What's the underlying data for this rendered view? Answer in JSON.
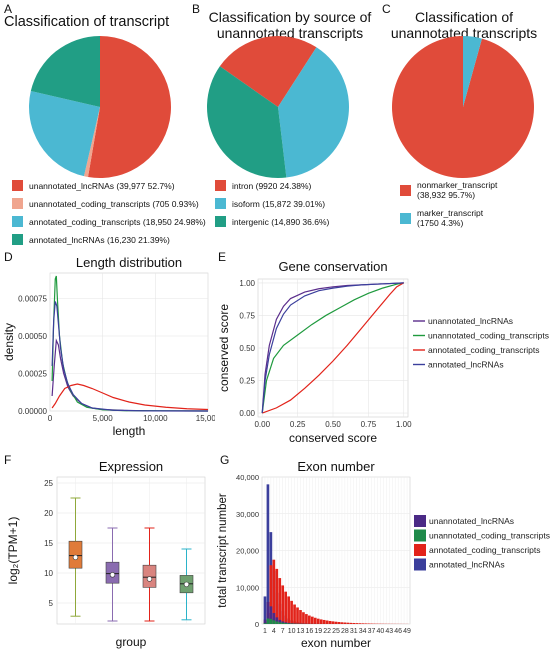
{
  "panels": {
    "A": {
      "label": "A",
      "title": "Classification of transcript"
    },
    "B": {
      "label": "B",
      "title_line1": "Classification by source of",
      "title_line2": "unannotated transcripts"
    },
    "C": {
      "label": "C",
      "title_line1": "Classification of",
      "title_line2": "unannotated transcripts"
    },
    "D": {
      "label": "D"
    },
    "E": {
      "label": "E"
    },
    "F": {
      "label": "F"
    },
    "G": {
      "label": "G"
    }
  },
  "chart_data": [
    {
      "id": "A",
      "type": "pie",
      "title": "Classification of transcript",
      "slices": [
        {
          "label": "unannotated_lncRNAs (39,977 52.7%)",
          "value": 52.7,
          "color": "#e04b3a"
        },
        {
          "label": "unannotated_coding_transcripts (705 0.93%)",
          "value": 0.93,
          "color": "#f0a58f"
        },
        {
          "label": "annotated_coding_transcripts (18,950 24.98%)",
          "value": 24.98,
          "color": "#4bb8d2"
        },
        {
          "label": "annotated_lncRNAs (16,230 21.39%)",
          "value": 21.39,
          "color": "#219e85"
        }
      ]
    },
    {
      "id": "B",
      "type": "pie",
      "title": "Classification by source of unannotated transcripts",
      "slices": [
        {
          "label": "intron (9920 24.38%)",
          "value": 24.38,
          "color": "#e04b3a"
        },
        {
          "label": "isoform (15,872 39.01%)",
          "value": 39.01,
          "color": "#4bb8d2"
        },
        {
          "label": "intergenic (14,890 36.6%)",
          "value": 36.6,
          "color": "#219e85"
        }
      ]
    },
    {
      "id": "C",
      "type": "pie",
      "title": "Classification of unannotated transcripts",
      "slices": [
        {
          "label": "nonmarker_transcript\n(38,932 95.7%)",
          "value": 95.7,
          "color": "#e04b3a"
        },
        {
          "label": "marker_transcript\n(1750 4.3%)",
          "value": 4.3,
          "color": "#4bb8d2"
        }
      ]
    },
    {
      "id": "D",
      "type": "line",
      "title": "Length distribution",
      "xlabel": "length",
      "ylabel": "density",
      "xlim": [
        0,
        15000
      ],
      "ylim": [
        0,
        0.00092
      ],
      "xticks": [
        0,
        5000,
        10000,
        15000
      ],
      "xtick_labels": [
        "0",
        "5,000",
        "10,000",
        "15,000"
      ],
      "yticks": [
        0,
        0.00025,
        0.0005,
        0.00075
      ],
      "ytick_labels": [
        "0.00000",
        "0.00025",
        "0.00050",
        "0.00075"
      ],
      "series": [
        {
          "color": "#5a2d8c",
          "x": [
            200,
            400,
            600,
            800,
            1000,
            1300,
            1700,
            2200,
            3000,
            4000,
            5000,
            7000,
            10000,
            15000
          ],
          "y": [
            0.0001,
            0.0003,
            0.00047,
            0.00044,
            0.00035,
            0.00025,
            0.00016,
            0.0001,
            5e-05,
            2e-05,
            1e-05,
            4e-06,
            1e-06,
            0
          ]
        },
        {
          "color": "#1f9a3e",
          "x": [
            200,
            350,
            500,
            600,
            700,
            900,
            1200,
            1600,
            2000,
            2600,
            3500,
            5000,
            7000,
            15000
          ],
          "y": [
            0.0002,
            0.0006,
            0.00088,
            0.0009,
            0.00075,
            0.0005,
            0.00032,
            0.0002,
            0.00013,
            6e-05,
            2.5e-05,
            8e-06,
            2e-06,
            0
          ]
        },
        {
          "color": "#e2231a",
          "x": [
            200,
            500,
            900,
            1400,
            2000,
            2600,
            3200,
            4000,
            5000,
            6000,
            7500,
            9000,
            11000,
            13000,
            15000
          ],
          "y": [
            2e-05,
            5e-05,
            0.0001,
            0.00015,
            0.00017,
            0.00018,
            0.00017,
            0.00015,
            0.00012,
            9e-05,
            6e-05,
            4e-05,
            2.5e-05,
            1.5e-05,
            1e-05
          ]
        },
        {
          "color": "#3b3f9c",
          "x": [
            200,
            350,
            500,
            650,
            800,
            1000,
            1300,
            1700,
            2200,
            3000,
            4000,
            6000,
            9000,
            15000
          ],
          "y": [
            0.0003,
            0.0006,
            0.00073,
            0.0007,
            0.00058,
            0.00042,
            0.00028,
            0.00018,
            0.00011,
            5e-05,
            2e-05,
            5e-06,
            1e-06,
            0
          ]
        }
      ]
    },
    {
      "id": "E",
      "type": "line",
      "title": "Gene conservation",
      "xlabel": "conserved score",
      "ylabel": "conserved score",
      "xlim": [
        -0.03,
        1.03
      ],
      "ylim": [
        -0.03,
        1.03
      ],
      "xticks": [
        0,
        0.25,
        0.5,
        0.75,
        1
      ],
      "xtick_labels": [
        "0.00",
        "0.25",
        "0.50",
        "0.75",
        "1.00"
      ],
      "yticks": [
        0,
        0.25,
        0.5,
        0.75,
        1
      ],
      "ytick_labels": [
        "0.00",
        "0.25",
        "0.50",
        "0.75",
        "1.00"
      ],
      "series": [
        {
          "name": "unannotated_lncRNAs",
          "color": "#5a2d8c",
          "x": [
            0,
            0.02,
            0.05,
            0.1,
            0.15,
            0.2,
            0.3,
            0.4,
            0.5,
            0.6,
            0.7,
            0.8,
            0.9,
            1
          ],
          "y": [
            0,
            0.3,
            0.52,
            0.72,
            0.82,
            0.88,
            0.93,
            0.955,
            0.97,
            0.98,
            0.985,
            0.99,
            0.995,
            1
          ]
        },
        {
          "name": "unannotated_coding_transcripts",
          "color": "#1f9a3e",
          "x": [
            0,
            0.03,
            0.08,
            0.15,
            0.25,
            0.35,
            0.45,
            0.55,
            0.65,
            0.75,
            0.85,
            0.95,
            1
          ],
          "y": [
            0,
            0.25,
            0.42,
            0.52,
            0.6,
            0.68,
            0.75,
            0.81,
            0.87,
            0.92,
            0.96,
            0.99,
            1
          ]
        },
        {
          "name": "annotated_coding_transcripts",
          "color": "#e2231a",
          "x": [
            0,
            0.1,
            0.2,
            0.3,
            0.4,
            0.5,
            0.6,
            0.7,
            0.8,
            0.9,
            0.95,
            1
          ],
          "y": [
            0,
            0.04,
            0.1,
            0.19,
            0.29,
            0.4,
            0.52,
            0.65,
            0.78,
            0.91,
            0.97,
            1
          ]
        },
        {
          "name": "annotated_lncRNAs",
          "color": "#3b3f9c",
          "x": [
            0,
            0.02,
            0.05,
            0.1,
            0.15,
            0.2,
            0.3,
            0.4,
            0.5,
            0.6,
            0.7,
            0.8,
            0.9,
            1
          ],
          "y": [
            0,
            0.25,
            0.45,
            0.65,
            0.76,
            0.83,
            0.9,
            0.94,
            0.96,
            0.975,
            0.985,
            0.99,
            0.995,
            1
          ]
        }
      ]
    },
    {
      "id": "F",
      "type": "box",
      "title": "Expression",
      "xlabel": "group",
      "ylabel": "log₂(TPM+1)",
      "ylim": [
        1.5,
        26
      ],
      "yticks": [
        5,
        10,
        15,
        20,
        25
      ],
      "ytick_labels": [
        "5",
        "10",
        "15",
        "20",
        "25"
      ],
      "boxes": [
        {
          "fill": "#e07b39",
          "line": "#8fa83a",
          "min": 2.8,
          "q1": 10.8,
          "median": 12.9,
          "q3": 15.3,
          "max": 22.5,
          "mean": 12.6
        },
        {
          "fill": "#8a6bb0",
          "line": "#8a6bb0",
          "min": 2.0,
          "q1": 8.3,
          "median": 9.9,
          "q3": 11.8,
          "max": 17.5,
          "mean": 9.7
        },
        {
          "fill": "#d9847f",
          "line": "#e2231a",
          "min": 2.0,
          "q1": 7.6,
          "median": 9.3,
          "q3": 11.3,
          "max": 17.5,
          "mean": 9.0
        },
        {
          "fill": "#6fa06f",
          "line": "#2bb3c9",
          "min": 2.2,
          "q1": 6.7,
          "median": 8.2,
          "q3": 9.6,
          "max": 14.0,
          "mean": 8.1
        }
      ]
    },
    {
      "id": "G",
      "type": "bar",
      "title": "Exon number",
      "xlabel": "exon number",
      "ylabel": "total transcript number",
      "ylim": [
        0,
        40000
      ],
      "yticks": [
        0,
        10000,
        20000,
        30000,
        40000
      ],
      "ytick_labels": [
        "0",
        "10,000",
        "20,000",
        "30,000",
        "40,000"
      ],
      "xtick_labels": [
        "1",
        "4",
        "7",
        "10",
        "13",
        "16",
        "19",
        "22",
        "25",
        "28",
        "31",
        "34",
        "37",
        "40",
        "43",
        "46",
        "49"
      ],
      "x": [
        1,
        2,
        3,
        4,
        5,
        6,
        7,
        8,
        9,
        10,
        11,
        12,
        13,
        14,
        15,
        16,
        17,
        18,
        19,
        20,
        21,
        22,
        23,
        24,
        25,
        26,
        27,
        28,
        29,
        30,
        31,
        32,
        33,
        34,
        35,
        36,
        37,
        38,
        39,
        40,
        41,
        42,
        43,
        44,
        45,
        46,
        47,
        48,
        49
      ],
      "series": [
        {
          "name": "unannotated_lncRNAs",
          "color": "#4b2a86",
          "values": [
            1200,
            6000,
            4800,
            3000,
            1800,
            1100,
            700,
            450,
            300,
            200,
            150,
            100,
            80,
            60,
            50,
            40,
            30,
            25,
            20,
            15,
            12,
            10,
            8,
            6,
            5,
            4,
            4,
            3,
            3,
            2,
            2,
            2,
            1,
            1,
            1,
            1,
            1,
            1,
            1,
            1,
            1,
            1,
            1,
            1,
            1,
            1,
            1,
            1,
            1
          ]
        },
        {
          "name": "unannotated_coding_transcripts",
          "color": "#1f8a4a",
          "values": [
            200,
            1500,
            1400,
            1000,
            700,
            500,
            350,
            250,
            180,
            120,
            90,
            70,
            50,
            40,
            30,
            25,
            20,
            15,
            12,
            10,
            8,
            6,
            5,
            4,
            3,
            3,
            2,
            2,
            2,
            1,
            1,
            1,
            1,
            1,
            1,
            1,
            1,
            1,
            1,
            1,
            1,
            1,
            1,
            1,
            1,
            1,
            1,
            1,
            1
          ]
        },
        {
          "name": "annotated_coding_transcripts",
          "color": "#e2231a",
          "values": [
            600,
            3000,
            16000,
            17500,
            15000,
            12500,
            10500,
            8800,
            7500,
            6300,
            5300,
            4500,
            3800,
            3200,
            2700,
            2300,
            2000,
            1700,
            1450,
            1250,
            1100,
            950,
            820,
            720,
            620,
            540,
            470,
            410,
            360,
            310,
            270,
            240,
            210,
            180,
            160,
            140,
            120,
            100,
            90,
            80,
            70,
            60,
            55,
            50,
            45,
            40,
            35,
            30,
            28
          ]
        },
        {
          "name": "annotated_lncRNAs",
          "color": "#3b3f9c",
          "values": [
            7500,
            38000,
            25000,
            14500,
            8500,
            5500,
            3500,
            2300,
            1500,
            1000,
            700,
            500,
            350,
            250,
            180,
            130,
            100,
            80,
            60,
            45,
            35,
            28,
            22,
            18,
            14,
            11,
            9,
            7,
            6,
            5,
            4,
            3,
            3,
            2,
            2,
            2,
            1,
            1,
            1,
            1,
            1,
            1,
            1,
            1,
            1,
            1,
            1,
            1,
            1
          ]
        }
      ]
    }
  ]
}
